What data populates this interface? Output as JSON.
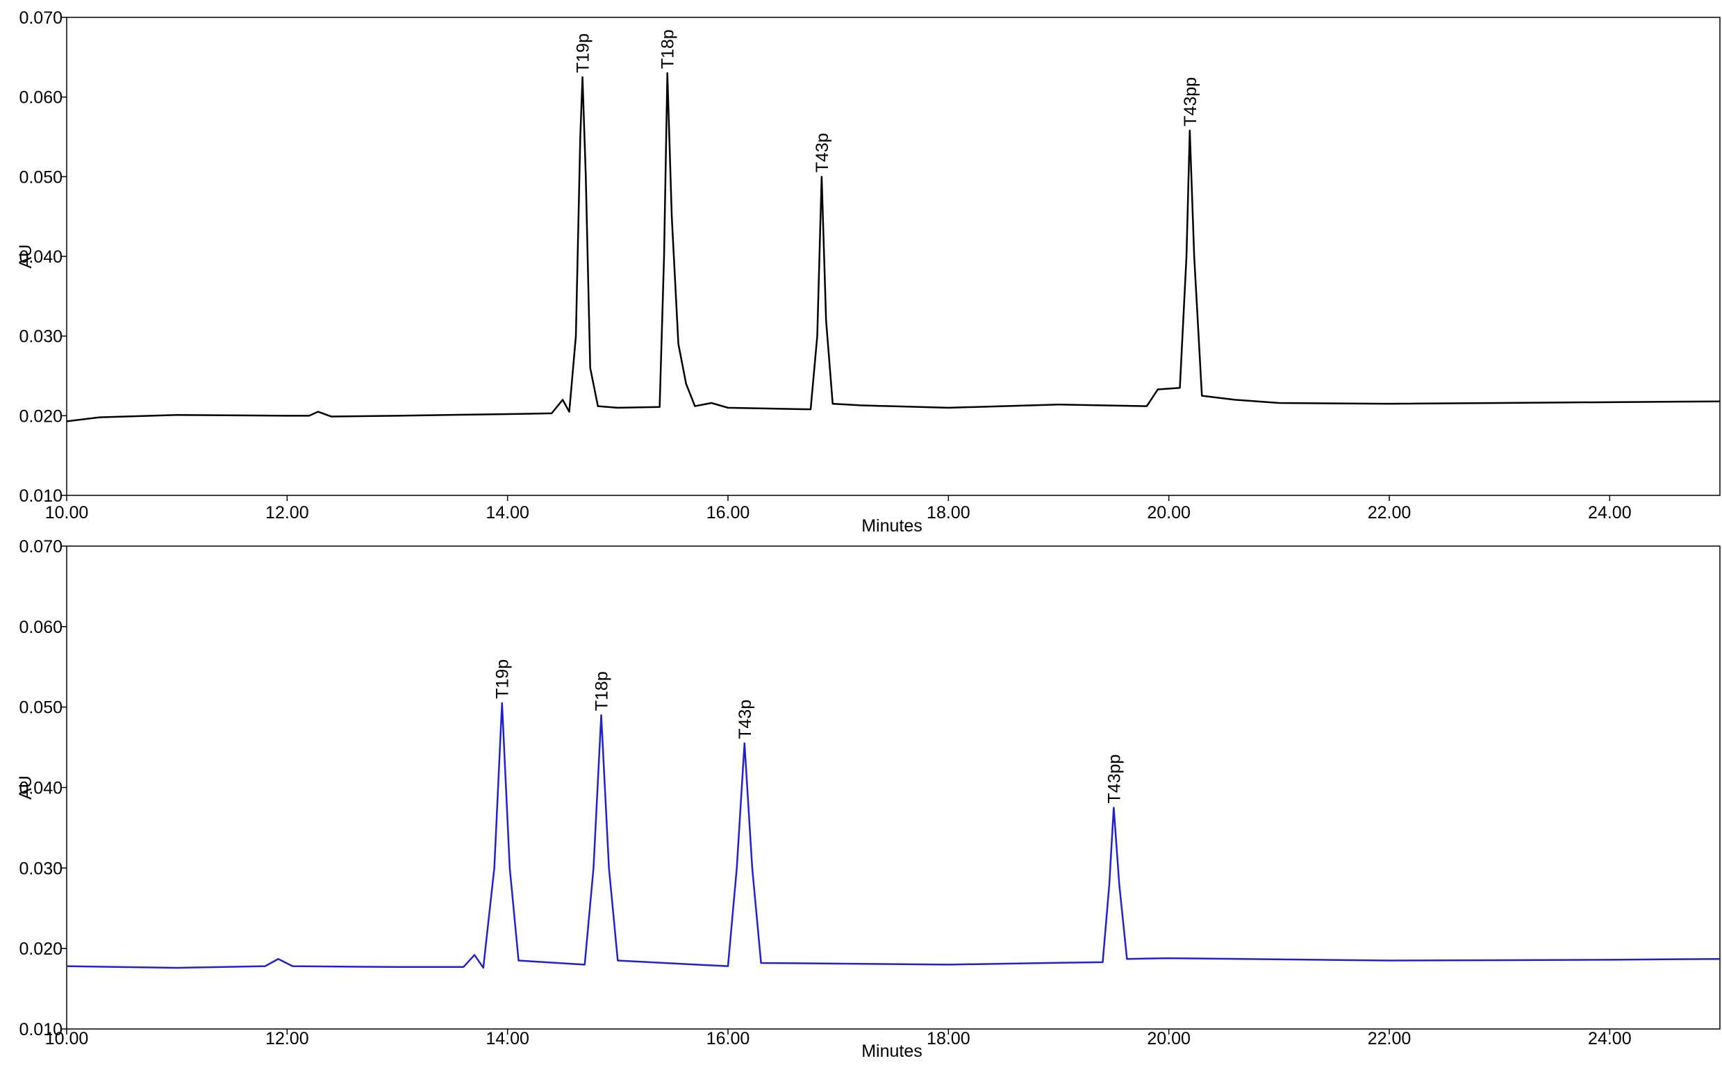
{
  "chart_data": [
    {
      "type": "line",
      "xlabel": "Minutes",
      "ylabel": "AU",
      "xlim": [
        10,
        25
      ],
      "ylim": [
        0.01,
        0.07
      ],
      "xticks": [
        {
          "value": 10,
          "label": "10.00"
        },
        {
          "value": 12,
          "label": "12.00"
        },
        {
          "value": 14,
          "label": "14.00"
        },
        {
          "value": 16,
          "label": "16.00"
        },
        {
          "value": 18,
          "label": "18.00"
        },
        {
          "value": 20,
          "label": "20.00"
        },
        {
          "value": 22,
          "label": "22.00"
        },
        {
          "value": 24,
          "label": "24.00"
        }
      ],
      "yticks": [
        {
          "value": 0.01,
          "label": "0.010"
        },
        {
          "value": 0.02,
          "label": "0.020"
        },
        {
          "value": 0.03,
          "label": "0.030"
        },
        {
          "value": 0.04,
          "label": "0.040"
        },
        {
          "value": 0.05,
          "label": "0.050"
        },
        {
          "value": 0.06,
          "label": "0.060"
        },
        {
          "value": 0.07,
          "label": "0.070"
        }
      ],
      "x": [
        10.0,
        10.3,
        11.0,
        12.0,
        12.2,
        12.28,
        12.4,
        13.0,
        14.0,
        14.4,
        14.5,
        14.56,
        14.62,
        14.66,
        14.68,
        14.71,
        14.75,
        14.82,
        15.0,
        15.38,
        15.42,
        15.45,
        15.49,
        15.55,
        15.62,
        15.7,
        15.85,
        16.0,
        16.75,
        16.81,
        16.85,
        16.89,
        16.95,
        17.2,
        18.0,
        19.0,
        19.8,
        19.9,
        20.1,
        20.16,
        20.19,
        20.23,
        20.3,
        20.6,
        21.0,
        22.0,
        25.0
      ],
      "series": [
        {
          "color": "#000000",
          "values": [
            0.0193,
            0.0198,
            0.0201,
            0.02,
            0.02,
            0.0205,
            0.0199,
            0.02,
            0.0202,
            0.0203,
            0.022,
            0.0205,
            0.03,
            0.055,
            0.0625,
            0.05,
            0.026,
            0.0212,
            0.021,
            0.0211,
            0.04,
            0.063,
            0.045,
            0.029,
            0.024,
            0.0212,
            0.0216,
            0.021,
            0.0208,
            0.03,
            0.05,
            0.032,
            0.0215,
            0.0213,
            0.021,
            0.0214,
            0.0212,
            0.0233,
            0.0235,
            0.04,
            0.0558,
            0.04,
            0.0225,
            0.022,
            0.0216,
            0.0215,
            0.0218
          ]
        }
      ],
      "annotations": [
        {
          "text": "T19p",
          "x": 14.68,
          "y": 0.0625
        },
        {
          "text": "T18p",
          "x": 15.45,
          "y": 0.063
        },
        {
          "text": "T43p",
          "x": 16.85,
          "y": 0.05
        },
        {
          "text": "T43pp",
          "x": 20.19,
          "y": 0.0558
        }
      ]
    },
    {
      "type": "line",
      "xlabel": "Minutes",
      "ylabel": "AU",
      "xlim": [
        10,
        25
      ],
      "ylim": [
        0.01,
        0.07
      ],
      "xticks": [
        {
          "value": 10,
          "label": "10.00"
        },
        {
          "value": 12,
          "label": "12.00"
        },
        {
          "value": 14,
          "label": "14.00"
        },
        {
          "value": 16,
          "label": "16.00"
        },
        {
          "value": 18,
          "label": "18.00"
        },
        {
          "value": 20,
          "label": "20.00"
        },
        {
          "value": 22,
          "label": "22.00"
        },
        {
          "value": 24,
          "label": "24.00"
        }
      ],
      "yticks": [
        {
          "value": 0.01,
          "label": "0.010"
        },
        {
          "value": 0.02,
          "label": "0.020"
        },
        {
          "value": 0.03,
          "label": "0.030"
        },
        {
          "value": 0.04,
          "label": "0.040"
        },
        {
          "value": 0.05,
          "label": "0.050"
        },
        {
          "value": 0.06,
          "label": "0.060"
        },
        {
          "value": 0.07,
          "label": "0.070"
        }
      ],
      "x": [
        10.0,
        11.0,
        11.8,
        11.92,
        12.05,
        13.0,
        13.6,
        13.7,
        13.78,
        13.88,
        13.95,
        14.02,
        14.1,
        14.7,
        14.78,
        14.85,
        14.92,
        15.0,
        16.0,
        16.08,
        16.15,
        16.22,
        16.3,
        18.0,
        18.9,
        19.4,
        19.46,
        19.5,
        19.55,
        19.62,
        20.0,
        22.0,
        24.0,
        25.0
      ],
      "series": [
        {
          "color": "#2020d0",
          "values": [
            0.0178,
            0.0176,
            0.0178,
            0.0187,
            0.0178,
            0.0177,
            0.0177,
            0.0192,
            0.0176,
            0.03,
            0.0505,
            0.03,
            0.0185,
            0.018,
            0.03,
            0.049,
            0.03,
            0.0185,
            0.0178,
            0.03,
            0.0455,
            0.03,
            0.0182,
            0.018,
            0.0182,
            0.0183,
            0.028,
            0.0375,
            0.028,
            0.0187,
            0.0188,
            0.0185,
            0.0186,
            0.0187
          ]
        }
      ],
      "annotations": [
        {
          "text": "T19p",
          "x": 13.95,
          "y": 0.0505
        },
        {
          "text": "T18p",
          "x": 14.85,
          "y": 0.049
        },
        {
          "text": "T43p",
          "x": 16.15,
          "y": 0.0455
        },
        {
          "text": "T43pp",
          "x": 19.5,
          "y": 0.0375
        }
      ]
    }
  ]
}
